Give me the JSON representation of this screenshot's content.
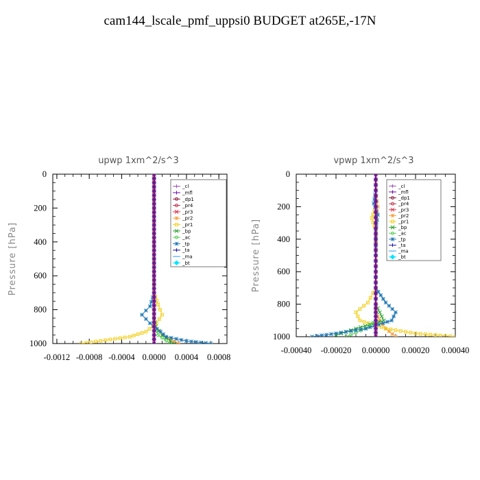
{
  "title": "cam144_lscale_pmf_uppsi0  BUDGET at265E,-17N",
  "chart_data": [
    {
      "type": "line",
      "title": "upwp   1xm^2/s^3",
      "ylabel": "Pressure [hPa]",
      "xlabel": "",
      "xlim": [
        -0.00125,
        0.0009
      ],
      "ylim": [
        1000,
        0
      ],
      "xticks": [
        -0.0012,
        -0.0008,
        -0.0004,
        0.0,
        0.0004,
        0.0008
      ],
      "xtick_labels": [
        "-0.0012",
        "-0.0008",
        "-0.0004",
        "0.0000",
        "0.0004",
        "0.0008"
      ],
      "yticks": [
        0,
        200,
        400,
        600,
        800,
        1000
      ],
      "ytick_labels": [
        "0",
        "200",
        "400",
        "600",
        "800",
        "1000"
      ],
      "legend_position": "top-right",
      "series": [
        {
          "name": "_cl",
          "color": "#9b59b6",
          "marker": "+",
          "x": [
            0,
            0,
            0,
            0,
            0,
            0,
            0,
            0,
            0,
            0,
            0,
            0,
            0
          ],
          "y": [
            0,
            100,
            200,
            300,
            400,
            500,
            600,
            700,
            800,
            850,
            900,
            950,
            1000
          ]
        },
        {
          "name": "_mfl",
          "color": "#6a0dad",
          "marker": "+",
          "x": [
            0,
            0,
            0,
            0,
            0,
            0,
            0,
            0,
            0,
            0,
            0,
            0,
            0
          ],
          "y": [
            0,
            100,
            200,
            300,
            400,
            500,
            600,
            700,
            800,
            850,
            900,
            950,
            1000
          ]
        },
        {
          "name": "_dp1",
          "color": "#8b1a3a",
          "marker": "o",
          "x": [
            0,
            0,
            0,
            0,
            0,
            0,
            0,
            0,
            0,
            0,
            0,
            0,
            0
          ],
          "y": [
            0,
            100,
            200,
            300,
            400,
            500,
            600,
            700,
            800,
            850,
            900,
            950,
            1000
          ]
        },
        {
          "name": "_pr4",
          "color": "#c0304a",
          "marker": "o",
          "x": [
            0,
            0,
            0,
            0,
            0,
            0,
            0,
            0,
            0,
            0,
            0,
            0,
            0
          ],
          "y": [
            0,
            100,
            200,
            300,
            400,
            500,
            600,
            700,
            800,
            850,
            900,
            950,
            1000
          ]
        },
        {
          "name": "_pr3",
          "color": "#e0304a",
          "marker": "x",
          "x": [
            0,
            0,
            0,
            0,
            0,
            0,
            0,
            0,
            0,
            0,
            0,
            0,
            0
          ],
          "y": [
            0,
            100,
            200,
            300,
            400,
            500,
            600,
            700,
            800,
            850,
            900,
            950,
            1000
          ]
        },
        {
          "name": "_pr2",
          "color": "#f4a040",
          "marker": "*",
          "x": [
            0,
            0,
            0,
            0,
            0,
            0,
            0,
            0,
            0,
            0,
            2e-05,
            0.0001,
            0.0003
          ],
          "y": [
            0,
            100,
            200,
            300,
            400,
            500,
            600,
            700,
            800,
            850,
            900,
            950,
            1000
          ]
        },
        {
          "name": "_pr1",
          "color": "#f2d024",
          "marker": "s",
          "x": [
            0,
            0,
            0,
            0,
            0,
            0,
            0,
            0,
            5e-05,
            0.0001,
            3e-05,
            -0.0001,
            -0.0003,
            -0.0009
          ],
          "y": [
            0,
            100,
            200,
            300,
            400,
            500,
            600,
            700,
            770,
            830,
            880,
            930,
            960,
            1000
          ]
        },
        {
          "name": "_bp",
          "color": "#2ca02c",
          "marker": "x",
          "x": [
            0,
            0,
            0,
            0,
            0,
            0,
            0,
            0,
            0,
            0,
            2e-05,
            0.0001,
            0.00025
          ],
          "y": [
            0,
            100,
            200,
            300,
            400,
            500,
            600,
            700,
            800,
            850,
            900,
            950,
            1000
          ]
        },
        {
          "name": "_ac",
          "color": "#55cc55",
          "marker": "o",
          "x": [
            0,
            0,
            0,
            0,
            0,
            0,
            0,
            0,
            0,
            0,
            0,
            5e-05,
            0.0002
          ],
          "y": [
            0,
            100,
            200,
            300,
            400,
            500,
            600,
            700,
            800,
            850,
            900,
            950,
            1000
          ]
        },
        {
          "name": "_tp",
          "color": "#1f77b4",
          "marker": "*",
          "x": [
            0,
            0,
            0,
            0,
            0,
            0,
            0,
            0,
            -5e-05,
            -0.00015,
            -5e-05,
            8e-05,
            0.00015,
            0.0004,
            0.0007
          ],
          "y": [
            0,
            100,
            200,
            300,
            400,
            500,
            600,
            700,
            780,
            830,
            880,
            930,
            960,
            985,
            1000
          ]
        },
        {
          "name": "_ta",
          "color": "#1a1aaa",
          "marker": "+",
          "x": [
            0,
            0,
            0,
            0,
            0,
            0,
            0,
            0,
            0,
            0,
            0,
            0,
            0
          ],
          "y": [
            0,
            100,
            200,
            300,
            400,
            500,
            600,
            700,
            800,
            850,
            900,
            950,
            1000
          ]
        },
        {
          "name": "_ma",
          "color": "#3399ff",
          "marker": "-",
          "x": [
            0,
            0,
            0,
            0,
            0,
            0,
            0,
            0,
            0,
            0,
            0,
            0,
            0
          ],
          "y": [
            0,
            100,
            200,
            300,
            400,
            500,
            600,
            700,
            800,
            850,
            900,
            950,
            1000
          ]
        },
        {
          "name": "_bt",
          "color": "#00e5ff",
          "marker": "d",
          "x": [
            0,
            0,
            0,
            0,
            0,
            0,
            0,
            0,
            0,
            0,
            0,
            0,
            0
          ],
          "y": [
            0,
            100,
            200,
            300,
            400,
            500,
            600,
            700,
            800,
            850,
            900,
            950,
            1000
          ]
        }
      ]
    },
    {
      "type": "line",
      "title": "vpwp   1xm^2/s^3",
      "ylabel": "Pressure [hPa]",
      "xlabel": "",
      "xlim": [
        -0.0004,
        0.0004
      ],
      "ylim": [
        1000,
        0
      ],
      "xticks": [
        -0.0004,
        -0.0002,
        0.0,
        0.0002,
        0.0004
      ],
      "xtick_labels": [
        "-0.00040",
        "-0.00020",
        "0.00000",
        "0.00020",
        "0.00040"
      ],
      "yticks": [
        0,
        200,
        400,
        600,
        800,
        1000
      ],
      "ytick_labels": [
        "0",
        "200",
        "400",
        "600",
        "800",
        "1000"
      ],
      "legend_position": "top-right",
      "series": [
        {
          "name": "_cl",
          "color": "#9b59b6",
          "marker": "+",
          "x": [
            0,
            0,
            0,
            0,
            0,
            0,
            0,
            0,
            0,
            0,
            0,
            0,
            0
          ],
          "y": [
            0,
            100,
            200,
            300,
            400,
            500,
            600,
            700,
            800,
            850,
            900,
            950,
            1000
          ]
        },
        {
          "name": "_mfl",
          "color": "#6a0dad",
          "marker": "+",
          "x": [
            0,
            0,
            0,
            0,
            0,
            0,
            0,
            0,
            0,
            0,
            0,
            0,
            0
          ],
          "y": [
            0,
            100,
            200,
            300,
            400,
            500,
            600,
            700,
            800,
            850,
            900,
            950,
            1000
          ]
        },
        {
          "name": "_dp1",
          "color": "#8b1a3a",
          "marker": "o",
          "x": [
            0,
            0,
            0,
            0,
            0,
            0,
            0,
            0,
            0,
            0,
            0,
            0,
            0
          ],
          "y": [
            0,
            100,
            200,
            300,
            400,
            500,
            600,
            700,
            800,
            850,
            900,
            950,
            1000
          ]
        },
        {
          "name": "_pr4",
          "color": "#c0304a",
          "marker": "o",
          "x": [
            0,
            0,
            0,
            0,
            0,
            0,
            0,
            0,
            0,
            0,
            0,
            0,
            0
          ],
          "y": [
            0,
            100,
            200,
            300,
            400,
            500,
            600,
            700,
            800,
            850,
            900,
            950,
            1000
          ]
        },
        {
          "name": "_pr3",
          "color": "#e0304a",
          "marker": "x",
          "x": [
            0,
            0,
            0,
            0,
            0,
            0,
            0,
            0,
            0,
            0,
            0,
            0,
            0
          ],
          "y": [
            0,
            100,
            200,
            300,
            400,
            500,
            600,
            700,
            800,
            850,
            900,
            950,
            1000
          ]
        },
        {
          "name": "_pr2",
          "color": "#f4a040",
          "marker": "*",
          "x": [
            0,
            0,
            1e-05,
            0,
            0,
            0,
            0,
            0,
            0,
            0,
            2e-05,
            5e-05,
            0.0001
          ],
          "y": [
            0,
            100,
            200,
            300,
            400,
            500,
            600,
            700,
            800,
            850,
            900,
            950,
            1000
          ]
        },
        {
          "name": "_pr1",
          "color": "#f2d024",
          "marker": "s",
          "x": [
            0,
            0,
            0,
            -2e-05,
            0,
            0,
            0,
            0,
            -4e-05,
            -0.0001,
            -8e-05,
            5e-05,
            0.0002,
            0.0004
          ],
          "y": [
            0,
            100,
            200,
            270,
            350,
            500,
            600,
            700,
            790,
            850,
            900,
            950,
            980,
            1000
          ]
        },
        {
          "name": "_bp",
          "color": "#2ca02c",
          "marker": "x",
          "x": [
            0,
            0,
            0,
            0,
            0,
            0,
            0,
            0,
            0,
            2e-05,
            4e-05,
            -0.0001,
            -0.0002
          ],
          "y": [
            0,
            100,
            200,
            300,
            400,
            500,
            600,
            700,
            800,
            850,
            900,
            950,
            990
          ]
        },
        {
          "name": "_ac",
          "color": "#55cc55",
          "marker": "o",
          "x": [
            0,
            0,
            0,
            0,
            0,
            0,
            0,
            0,
            0,
            0,
            0,
            -5e-05,
            -0.00015
          ],
          "y": [
            0,
            100,
            200,
            300,
            400,
            500,
            600,
            700,
            800,
            850,
            900,
            950,
            1000
          ]
        },
        {
          "name": "_tp",
          "color": "#1f77b4",
          "marker": "*",
          "x": [
            0,
            0,
            -1e-05,
            1e-05,
            0,
            0,
            0,
            0,
            5e-05,
            0.0001,
            8e-05,
            -5e-05,
            -0.0002,
            -0.00032
          ],
          "y": [
            0,
            100,
            180,
            250,
            350,
            500,
            600,
            700,
            790,
            850,
            900,
            950,
            980,
            1000
          ]
        },
        {
          "name": "_ta",
          "color": "#1a1aaa",
          "marker": "+",
          "x": [
            0,
            0,
            0,
            0,
            0,
            0,
            0,
            0,
            0,
            0,
            0,
            0,
            0
          ],
          "y": [
            0,
            100,
            200,
            300,
            400,
            500,
            600,
            700,
            800,
            850,
            900,
            950,
            1000
          ]
        },
        {
          "name": "_ma",
          "color": "#3399ff",
          "marker": "-",
          "x": [
            0,
            0,
            0,
            0,
            0,
            0,
            0,
            0,
            0,
            0,
            0,
            0,
            0
          ],
          "y": [
            0,
            100,
            200,
            300,
            400,
            500,
            600,
            700,
            800,
            850,
            900,
            950,
            1000
          ]
        },
        {
          "name": "_bt",
          "color": "#00e5ff",
          "marker": "d",
          "x": [
            0,
            0,
            0,
            0,
            0,
            0,
            0,
            0,
            0,
            0,
            0,
            0,
            0
          ],
          "y": [
            0,
            100,
            200,
            300,
            400,
            500,
            600,
            700,
            800,
            850,
            900,
            950,
            1000
          ]
        }
      ]
    }
  ]
}
